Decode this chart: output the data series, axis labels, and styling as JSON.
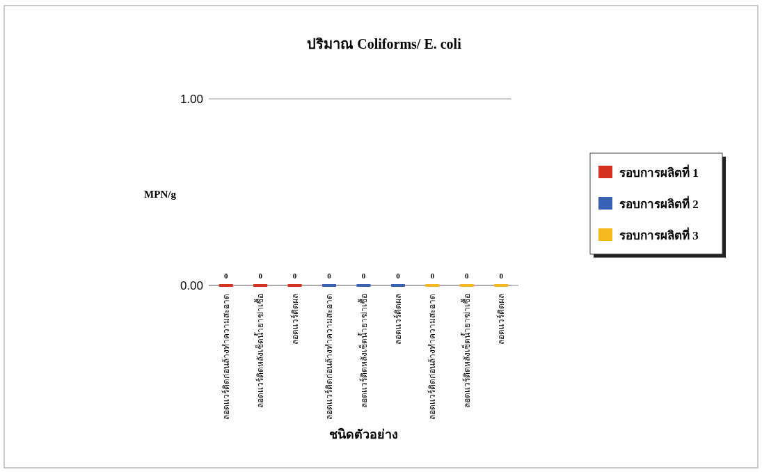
{
  "chart_data": {
    "type": "bar",
    "title": "ปริมาณ Coliforms/ E. coli",
    "xlabel": "ชนิดตัวอย่าง",
    "ylabel": "MPN/g",
    "categories": [
      "ลอดแวร์ติดก่อนล้างทำความสะอาด",
      "ลอดแวร์ติดหลังเช็ดน้ำยาฆ่าเชื้อ",
      "ลอดแวร์ติดผล",
      "ลอดแวร์ติดก่อนล้างทำความสะอาด",
      "ลอดแวร์ติดหลังเช็ดน้ำยาฆ่าเชื้อ",
      "ลอดแวร์ติดผล",
      "ลอดแวร์ติดก่อนล้างทำความสะอาด",
      "ลอดแวร์ติดหลังเช็ดน้ำยาฆ่าเชื้อ",
      "ลอดแวร์ติดผล"
    ],
    "series": [
      {
        "name": "รอบการผลิตที่ 1",
        "color": "#d2321e",
        "values": [
          0,
          0,
          0,
          null,
          null,
          null,
          null,
          null,
          null
        ]
      },
      {
        "name": "รอบการผลิตที่ 2",
        "color": "#3a62b4",
        "values": [
          null,
          null,
          null,
          0,
          0,
          0,
          null,
          null,
          null
        ]
      },
      {
        "name": "รอบการผลิตที่ 3",
        "color": "#f5b81e",
        "values": [
          null,
          null,
          null,
          null,
          null,
          null,
          0,
          0,
          0
        ]
      }
    ],
    "ylim": [
      0,
      1
    ],
    "yticks": [
      {
        "value": 0,
        "label": "0.00"
      },
      {
        "value": 1,
        "label": "1.00"
      }
    ],
    "grid": "y",
    "legend": "right",
    "data_labels": true
  }
}
